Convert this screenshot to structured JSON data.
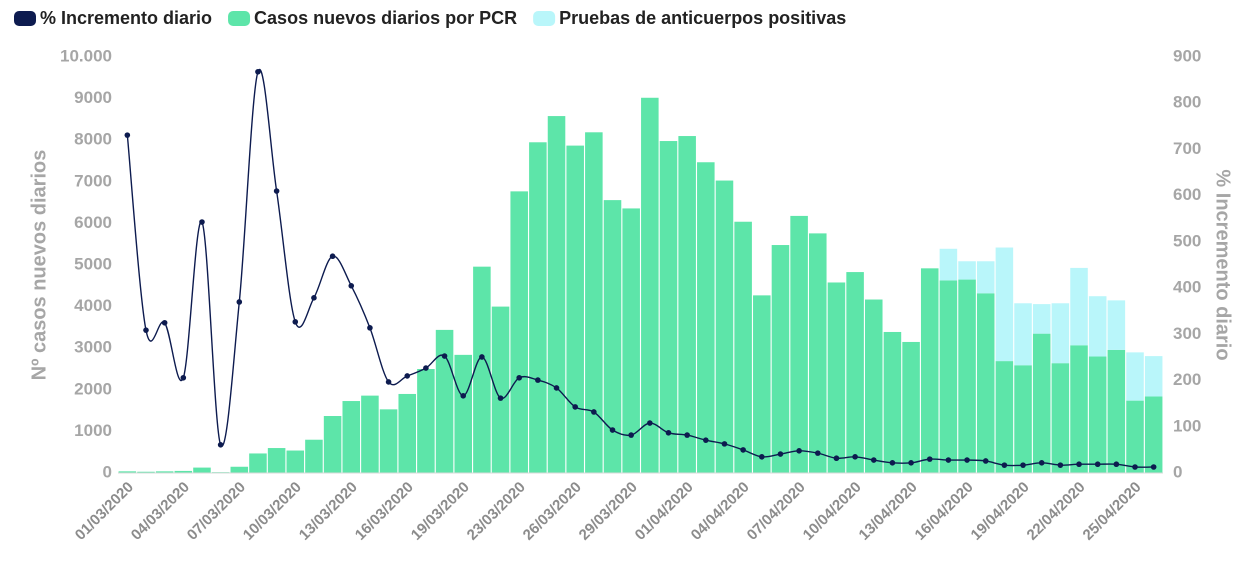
{
  "chart_data": {
    "type": "bar",
    "y_label": "Nº casos nuevos diarios",
    "y2_label": "% Incremento diario",
    "categories": [
      "01/03/2020",
      null,
      null,
      "04/03/2020",
      null,
      null,
      "07/03/2020",
      null,
      null,
      "10/03/2020",
      null,
      null,
      "13/03/2020",
      null,
      null,
      "16/03/2020",
      null,
      null,
      "19/03/2020",
      null,
      null,
      "23/03/2020",
      null,
      null,
      "26/03/2020",
      null,
      null,
      "29/03/2020",
      null,
      null,
      "01/04/2020",
      null,
      null,
      "04/04/2020",
      null,
      null,
      "07/04/2020",
      null,
      null,
      "10/04/2020",
      null,
      null,
      "13/04/2020",
      null,
      null,
      "16/04/2020",
      null,
      null,
      "19/04/2020",
      null,
      null,
      "22/04/2020",
      null,
      null,
      "25/04/2020",
      null
    ],
    "ylim": [
      0,
      10000
    ],
    "yticks": [
      0,
      1000,
      2000,
      3000,
      4000,
      5000,
      6000,
      7000,
      8000,
      9000,
      {
        "value": 10000,
        "label": "10.000"
      }
    ],
    "y2lim": [
      0,
      900
    ],
    "y2ticks": [
      0,
      100,
      200,
      300,
      400,
      500,
      600,
      700,
      800,
      900
    ],
    "legend": "top-left",
    "series": [
      {
        "name": "% Incremento diario",
        "type": "line",
        "axis": "y2",
        "color": "#0d1b4f",
        "values": [
          731,
          309,
          325,
          206,
          543,
          61,
          370,
          868,
          610,
          327,
          379,
          469,
          405,
          314,
          197,
          210,
          227,
          253,
          167,
          251,
          162,
          206,
          201,
          184,
          143,
          132,
          93,
          82,
          108,
          87,
          82,
          71,
          63,
          50,
          35,
          41,
          48,
          43,
          32,
          35,
          28,
          22,
          22,
          30,
          28,
          28,
          26,
          17,
          17,
          22,
          17,
          19,
          19,
          19,
          13,
          13
        ]
      },
      {
        "name": "Casos nuevos diarios por PCR",
        "type": "bar",
        "color": "#5de5a9",
        "values": [
          40,
          30,
          40,
          50,
          130,
          20,
          150,
          470,
          600,
          540,
          800,
          1370,
          1730,
          1860,
          1530,
          1900,
          2500,
          3440,
          2840,
          4960,
          4000,
          6770,
          7950,
          8580,
          7870,
          8190,
          6560,
          6360,
          9020,
          7980,
          8100,
          7470,
          7030,
          6040,
          4270,
          5480,
          6180,
          5760,
          4580,
          4830,
          4170,
          3390,
          3150,
          4920,
          4630,
          4650,
          4320,
          2690,
          2590,
          3350,
          2640,
          3070,
          2800,
          2960,
          1740,
          1840
        ]
      },
      {
        "name": "Pruebas de anticuerpos positivas",
        "type": "bar",
        "stack_on": 1,
        "color": "#b9f6fa",
        "values": [
          0,
          0,
          0,
          0,
          0,
          0,
          0,
          0,
          0,
          0,
          0,
          0,
          0,
          0,
          0,
          0,
          0,
          0,
          0,
          0,
          0,
          0,
          0,
          0,
          0,
          0,
          0,
          0,
          0,
          0,
          0,
          0,
          0,
          0,
          0,
          0,
          0,
          0,
          0,
          0,
          0,
          0,
          0,
          0,
          760,
          440,
          770,
          2730,
          1490,
          710,
          1440,
          1860,
          1450,
          1190,
          1160,
          970
        ]
      }
    ]
  }
}
